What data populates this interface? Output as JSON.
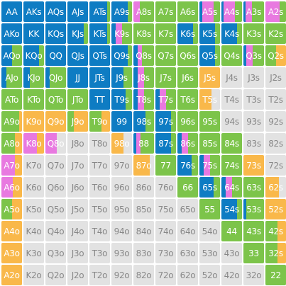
{
  "colors": {
    "raise": "#0e7cc3",
    "call": "#7cc44a",
    "allin": "#e879e0",
    "limp": "#f9b84a",
    "fold": "#e2e2e2",
    "text_light": "#ffffff",
    "text_dark": "#888888"
  },
  "chart_data": {
    "type": "table",
    "mix_order": [
      "raise",
      "allin",
      "call",
      "limp",
      "fold"
    ],
    "rows": [
      [
        {
          "hand": "AA",
          "mix": {
            "raise": 1
          }
        },
        {
          "hand": "AKs",
          "mix": {
            "raise": 1
          }
        },
        {
          "hand": "AQs",
          "mix": {
            "raise": 1
          }
        },
        {
          "hand": "AJs",
          "mix": {
            "raise": 1
          }
        },
        {
          "hand": "ATs",
          "mix": {
            "raise": 0.85,
            "call": 0.15
          }
        },
        {
          "hand": "A9s",
          "mix": {
            "raise": 0.8,
            "call": 0.2
          }
        },
        {
          "hand": "A8s",
          "mix": {
            "allin": 0.3,
            "call": 0.7
          }
        },
        {
          "hand": "A7s",
          "mix": {
            "call": 1
          }
        },
        {
          "hand": "A6s",
          "mix": {
            "call": 1
          }
        },
        {
          "hand": "A5s",
          "mix": {
            "raise": 0.15,
            "allin": 0.55,
            "call": 0.3
          }
        },
        {
          "hand": "A4s",
          "mix": {
            "raise": 0.1,
            "allin": 0.55,
            "call": 0.35
          }
        },
        {
          "hand": "A3s",
          "mix": {
            "raise": 0.1,
            "allin": 0.3,
            "call": 0.6
          }
        },
        {
          "hand": "A2s",
          "mix": {
            "allin": 0.7,
            "call": 0.3
          }
        }
      ],
      [
        {
          "hand": "AKo",
          "mix": {
            "raise": 1
          }
        },
        {
          "hand": "KK",
          "mix": {
            "raise": 1
          }
        },
        {
          "hand": "KQs",
          "mix": {
            "raise": 1
          }
        },
        {
          "hand": "KJs",
          "mix": {
            "raise": 0.8,
            "call": 0.2
          }
        },
        {
          "hand": "KTs",
          "mix": {
            "raise": 0.85,
            "call": 0.15
          }
        },
        {
          "hand": "K9s",
          "mix": {
            "raise": 0.2,
            "allin": 0.3,
            "call": 0.5
          }
        },
        {
          "hand": "K8s",
          "mix": {
            "call": 1
          }
        },
        {
          "hand": "K7s",
          "mix": {
            "call": 1
          }
        },
        {
          "hand": "K6s",
          "mix": {
            "raise": 0.75,
            "call": 0.25
          }
        },
        {
          "hand": "K5s",
          "mix": {
            "raise": 0.75,
            "call": 0.25
          }
        },
        {
          "hand": "K4s",
          "mix": {
            "raise": 0.75,
            "call": 0.25
          }
        },
        {
          "hand": "K3s",
          "mix": {
            "call": 1
          }
        },
        {
          "hand": "K2s",
          "mix": {
            "call": 1
          }
        }
      ],
      [
        {
          "hand": "AQo",
          "mix": {
            "raise": 0.5,
            "call": 0.5
          }
        },
        {
          "hand": "KQo",
          "mix": {
            "raise": 0.75,
            "call": 0.25
          }
        },
        {
          "hand": "QQ",
          "mix": {
            "raise": 1
          }
        },
        {
          "hand": "QJs",
          "mix": {
            "raise": 1
          }
        },
        {
          "hand": "QTs",
          "mix": {
            "raise": 1
          }
        },
        {
          "hand": "Q9s",
          "mix": {
            "raise": 0.8,
            "call": 0.2
          }
        },
        {
          "hand": "Q8s",
          "mix": {
            "raise": 0.2,
            "allin": 0.2,
            "call": 0.6
          }
        },
        {
          "hand": "Q7s",
          "mix": {
            "call": 1
          }
        },
        {
          "hand": "Q6s",
          "mix": {
            "call": 1
          }
        },
        {
          "hand": "Q5s",
          "mix": {
            "raise": 0.75,
            "call": 0.25
          }
        },
        {
          "hand": "Q4s",
          "mix": {
            "call": 1
          }
        },
        {
          "hand": "Q3s",
          "mix": {
            "raise": 0.15,
            "allin": 0.3,
            "call": 0.55
          }
        },
        {
          "hand": "Q2s",
          "mix": {
            "call": 0.5,
            "limp": 0.5
          }
        }
      ],
      [
        {
          "hand": "AJo",
          "mix": {
            "raise": 0.25,
            "call": 0.75
          }
        },
        {
          "hand": "KJo",
          "mix": {
            "raise": 0.3,
            "call": 0.7
          }
        },
        {
          "hand": "QJo",
          "mix": {
            "raise": 0.2,
            "call": 0.8
          }
        },
        {
          "hand": "JJ",
          "mix": {
            "raise": 1
          }
        },
        {
          "hand": "JTs",
          "mix": {
            "raise": 1
          }
        },
        {
          "hand": "J9s",
          "mix": {
            "raise": 0.6,
            "call": 0.4
          }
        },
        {
          "hand": "J8s",
          "mix": {
            "raise": 0.2,
            "allin": 0.3,
            "call": 0.5
          }
        },
        {
          "hand": "J7s",
          "mix": {
            "call": 1
          }
        },
        {
          "hand": "J6s",
          "mix": {
            "call": 1
          }
        },
        {
          "hand": "J5s",
          "mix": {
            "limp": 1
          }
        },
        {
          "hand": "J4s",
          "mix": {
            "fold": 1
          }
        },
        {
          "hand": "J3s",
          "mix": {
            "fold": 1
          }
        },
        {
          "hand": "J2s",
          "mix": {
            "fold": 1
          }
        }
      ],
      [
        {
          "hand": "ATo",
          "mix": {
            "call": 1
          }
        },
        {
          "hand": "KTo",
          "mix": {
            "call": 1
          }
        },
        {
          "hand": "QTo",
          "mix": {
            "call": 1
          }
        },
        {
          "hand": "JTo",
          "mix": {
            "call": 1
          }
        },
        {
          "hand": "TT",
          "mix": {
            "raise": 1
          }
        },
        {
          "hand": "T9s",
          "mix": {
            "raise": 0.7,
            "call": 0.3
          }
        },
        {
          "hand": "T8s",
          "mix": {
            "raise": 0.2,
            "allin": 0.3,
            "call": 0.5
          }
        },
        {
          "hand": "T7s",
          "mix": {
            "raise": 0.2,
            "allin": 0.3,
            "call": 0.5
          }
        },
        {
          "hand": "T6s",
          "mix": {
            "call": 1
          }
        },
        {
          "hand": "T5s",
          "mix": {
            "limp": 0.6,
            "fold": 0.4
          }
        },
        {
          "hand": "T4s",
          "mix": {
            "fold": 1
          }
        },
        {
          "hand": "T3s",
          "mix": {
            "fold": 1
          }
        },
        {
          "hand": "T2s",
          "mix": {
            "fold": 1
          }
        }
      ],
      [
        {
          "hand": "A9o",
          "mix": {
            "call": 0.85,
            "limp": 0.15
          }
        },
        {
          "hand": "K9o",
          "mix": {
            "limp": 1
          }
        },
        {
          "hand": "Q9o",
          "mix": {
            "limp": 1
          }
        },
        {
          "hand": "J9o",
          "mix": {
            "call": 0.3,
            "limp": 0.7
          }
        },
        {
          "hand": "T9o",
          "mix": {
            "call": 0.6,
            "limp": 0.4
          }
        },
        {
          "hand": "99",
          "mix": {
            "raise": 1
          }
        },
        {
          "hand": "98s",
          "mix": {
            "raise": 0.6,
            "call": 0.4
          }
        },
        {
          "hand": "97s",
          "mix": {
            "raise": 0.75,
            "call": 0.25
          }
        },
        {
          "hand": "96s",
          "mix": {
            "call": 1
          }
        },
        {
          "hand": "95s",
          "mix": {
            "call": 1
          }
        },
        {
          "hand": "94s",
          "mix": {
            "fold": 1
          }
        },
        {
          "hand": "93s",
          "mix": {
            "fold": 1
          }
        },
        {
          "hand": "92s",
          "mix": {
            "fold": 1
          }
        }
      ],
      [
        {
          "hand": "A8o",
          "mix": {
            "call": 0.65,
            "limp": 0.35
          }
        },
        {
          "hand": "K8o",
          "mix": {
            "allin": 0.65,
            "limp": 0.35
          }
        },
        {
          "hand": "Q8o",
          "mix": {
            "allin": 0.55,
            "fold": 0.45
          }
        },
        {
          "hand": "J8o",
          "mix": {
            "fold": 1
          }
        },
        {
          "hand": "T8o",
          "mix": {
            "fold": 1
          }
        },
        {
          "hand": "98o",
          "mix": {
            "limp": 0.6,
            "fold": 0.4
          }
        },
        {
          "hand": "88",
          "mix": {
            "raise": 0.15,
            "allin": 0.2,
            "call": 0.65
          }
        },
        {
          "hand": "87s",
          "mix": {
            "raise": 0.75,
            "call": 0.25
          }
        },
        {
          "hand": "86s",
          "mix": {
            "raise": 0.2,
            "allin": 0.3,
            "call": 0.5
          }
        },
        {
          "hand": "85s",
          "mix": {
            "call": 1
          }
        },
        {
          "hand": "84s",
          "mix": {
            "call": 1
          }
        },
        {
          "hand": "83s",
          "mix": {
            "fold": 1
          }
        },
        {
          "hand": "82s",
          "mix": {
            "fold": 1
          }
        }
      ],
      [
        {
          "hand": "A7o",
          "mix": {
            "allin": 0.65,
            "limp": 0.35
          }
        },
        {
          "hand": "K7o",
          "mix": {
            "fold": 1
          }
        },
        {
          "hand": "Q7o",
          "mix": {
            "fold": 1
          }
        },
        {
          "hand": "J7o",
          "mix": {
            "fold": 1
          }
        },
        {
          "hand": "T7o",
          "mix": {
            "fold": 1
          }
        },
        {
          "hand": "97o",
          "mix": {
            "fold": 1
          }
        },
        {
          "hand": "87o",
          "mix": {
            "limp": 0.8,
            "fold": 0.2
          }
        },
        {
          "hand": "77",
          "mix": {
            "call": 1
          }
        },
        {
          "hand": "76s",
          "mix": {
            "raise": 0.7,
            "call": 0.3
          }
        },
        {
          "hand": "75s",
          "mix": {
            "raise": 0.2,
            "allin": 0.3,
            "call": 0.5
          }
        },
        {
          "hand": "74s",
          "mix": {
            "call": 1
          }
        },
        {
          "hand": "73s",
          "mix": {
            "limp": 1
          }
        },
        {
          "hand": "72s",
          "mix": {
            "fold": 1
          }
        }
      ],
      [
        {
          "hand": "A6o",
          "mix": {
            "allin": 0.55,
            "limp": 0.45
          }
        },
        {
          "hand": "K6o",
          "mix": {
            "fold": 1
          }
        },
        {
          "hand": "Q6o",
          "mix": {
            "fold": 1
          }
        },
        {
          "hand": "J6o",
          "mix": {
            "fold": 1
          }
        },
        {
          "hand": "T6o",
          "mix": {
            "fold": 1
          }
        },
        {
          "hand": "96o",
          "mix": {
            "fold": 1
          }
        },
        {
          "hand": "86o",
          "mix": {
            "fold": 1
          }
        },
        {
          "hand": "76o",
          "mix": {
            "fold": 1
          }
        },
        {
          "hand": "66",
          "mix": {
            "call": 1
          }
        },
        {
          "hand": "65s",
          "mix": {
            "raise": 0.7,
            "call": 0.3
          }
        },
        {
          "hand": "64s",
          "mix": {
            "raise": 0.2,
            "allin": 0.3,
            "call": 0.5
          }
        },
        {
          "hand": "63s",
          "mix": {
            "call": 1
          }
        },
        {
          "hand": "62s",
          "mix": {
            "limp": 0.65,
            "fold": 0.35
          }
        }
      ],
      [
        {
          "hand": "A5o",
          "mix": {
            "call": 0.5,
            "limp": 0.5
          }
        },
        {
          "hand": "K5o",
          "mix": {
            "fold": 1
          }
        },
        {
          "hand": "Q5o",
          "mix": {
            "fold": 1
          }
        },
        {
          "hand": "J5o",
          "mix": {
            "fold": 1
          }
        },
        {
          "hand": "T5o",
          "mix": {
            "fold": 1
          }
        },
        {
          "hand": "95o",
          "mix": {
            "fold": 1
          }
        },
        {
          "hand": "85o",
          "mix": {
            "fold": 1
          }
        },
        {
          "hand": "75o",
          "mix": {
            "fold": 1
          }
        },
        {
          "hand": "65o",
          "mix": {
            "fold": 1
          }
        },
        {
          "hand": "55",
          "mix": {
            "call": 1
          }
        },
        {
          "hand": "54s",
          "mix": {
            "raise": 0.75,
            "call": 0.25
          }
        },
        {
          "hand": "53s",
          "mix": {
            "raise": 0.15,
            "call": 0.85
          }
        },
        {
          "hand": "52s",
          "mix": {
            "limp": 1
          }
        }
      ],
      [
        {
          "hand": "A4o",
          "mix": {
            "limp": 1
          }
        },
        {
          "hand": "K4o",
          "mix": {
            "fold": 1
          }
        },
        {
          "hand": "Q4o",
          "mix": {
            "fold": 1
          }
        },
        {
          "hand": "J4o",
          "mix": {
            "fold": 1
          }
        },
        {
          "hand": "T4o",
          "mix": {
            "fold": 1
          }
        },
        {
          "hand": "94o",
          "mix": {
            "fold": 1
          }
        },
        {
          "hand": "84o",
          "mix": {
            "fold": 1
          }
        },
        {
          "hand": "74o",
          "mix": {
            "fold": 1
          }
        },
        {
          "hand": "64o",
          "mix": {
            "fold": 1
          }
        },
        {
          "hand": "54o",
          "mix": {
            "fold": 1
          }
        },
        {
          "hand": "44",
          "mix": {
            "call": 1
          }
        },
        {
          "hand": "43s",
          "mix": {
            "call": 1
          }
        },
        {
          "hand": "42s",
          "mix": {
            "call": 0.6,
            "limp": 0.4
          }
        }
      ],
      [
        {
          "hand": "A3o",
          "mix": {
            "limp": 1
          }
        },
        {
          "hand": "K3o",
          "mix": {
            "fold": 1
          }
        },
        {
          "hand": "Q3o",
          "mix": {
            "fold": 1
          }
        },
        {
          "hand": "J3o",
          "mix": {
            "fold": 1
          }
        },
        {
          "hand": "T3o",
          "mix": {
            "fold": 1
          }
        },
        {
          "hand": "93o",
          "mix": {
            "fold": 1
          }
        },
        {
          "hand": "83o",
          "mix": {
            "fold": 1
          }
        },
        {
          "hand": "73o",
          "mix": {
            "fold": 1
          }
        },
        {
          "hand": "63o",
          "mix": {
            "fold": 1
          }
        },
        {
          "hand": "53o",
          "mix": {
            "fold": 1
          }
        },
        {
          "hand": "43o",
          "mix": {
            "fold": 1
          }
        },
        {
          "hand": "33",
          "mix": {
            "call": 1
          }
        },
        {
          "hand": "32s",
          "mix": {
            "call": 0.6,
            "limp": 0.4
          }
        }
      ],
      [
        {
          "hand": "A2o",
          "mix": {
            "limp": 1
          }
        },
        {
          "hand": "K2o",
          "mix": {
            "fold": 1
          }
        },
        {
          "hand": "Q2o",
          "mix": {
            "fold": 1
          }
        },
        {
          "hand": "J2o",
          "mix": {
            "fold": 1
          }
        },
        {
          "hand": "T2o",
          "mix": {
            "fold": 1
          }
        },
        {
          "hand": "92o",
          "mix": {
            "fold": 1
          }
        },
        {
          "hand": "82o",
          "mix": {
            "fold": 1
          }
        },
        {
          "hand": "72o",
          "mix": {
            "fold": 1
          }
        },
        {
          "hand": "62o",
          "mix": {
            "fold": 1
          }
        },
        {
          "hand": "52o",
          "mix": {
            "fold": 1
          }
        },
        {
          "hand": "42o",
          "mix": {
            "fold": 1
          }
        },
        {
          "hand": "32o",
          "mix": {
            "fold": 1
          }
        },
        {
          "hand": "22",
          "mix": {
            "call": 1
          }
        }
      ]
    ]
  }
}
